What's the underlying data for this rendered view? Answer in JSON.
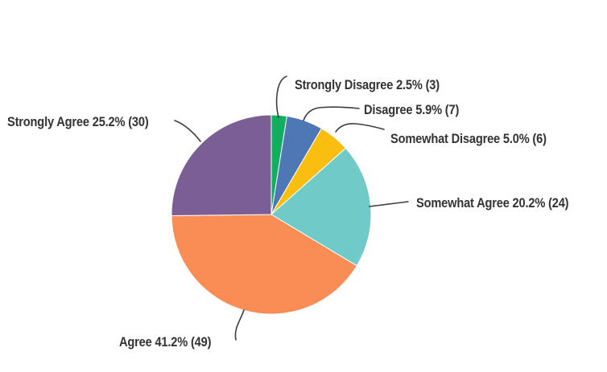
{
  "chart_data": {
    "type": "pie",
    "title": "",
    "direction": "clockwise",
    "start_angle_deg": 0,
    "labels_outside": true,
    "legend_position": "none",
    "leader_line_color": "#3d3d3d",
    "label_text_color": "#333333",
    "slices": [
      {
        "label": "Strongly Disagree",
        "percent": 2.5,
        "count": 3,
        "display": "Strongly Disagree 2.5% (3)",
        "color": "#12AE60"
      },
      {
        "label": "Disagree",
        "percent": 5.9,
        "count": 7,
        "display": "Disagree 5.9% (7)",
        "color": "#4E77B6"
      },
      {
        "label": "Somewhat Disagree",
        "percent": 5.0,
        "count": 6,
        "display": "Somewhat Disagree 5.0% (6)",
        "color": "#F9BE0F"
      },
      {
        "label": "Somewhat Agree",
        "percent": 20.2,
        "count": 24,
        "display": "Somewhat Agree 20.2% (24)",
        "color": "#70CAC8"
      },
      {
        "label": "Agree",
        "percent": 41.2,
        "count": 49,
        "display": "Agree 41.2% (49)",
        "color": "#FA8C55"
      },
      {
        "label": "Strongly Agree",
        "percent": 25.2,
        "count": 30,
        "display": "Strongly Agree 25.2% (30)",
        "color": "#7B5E93"
      }
    ]
  }
}
